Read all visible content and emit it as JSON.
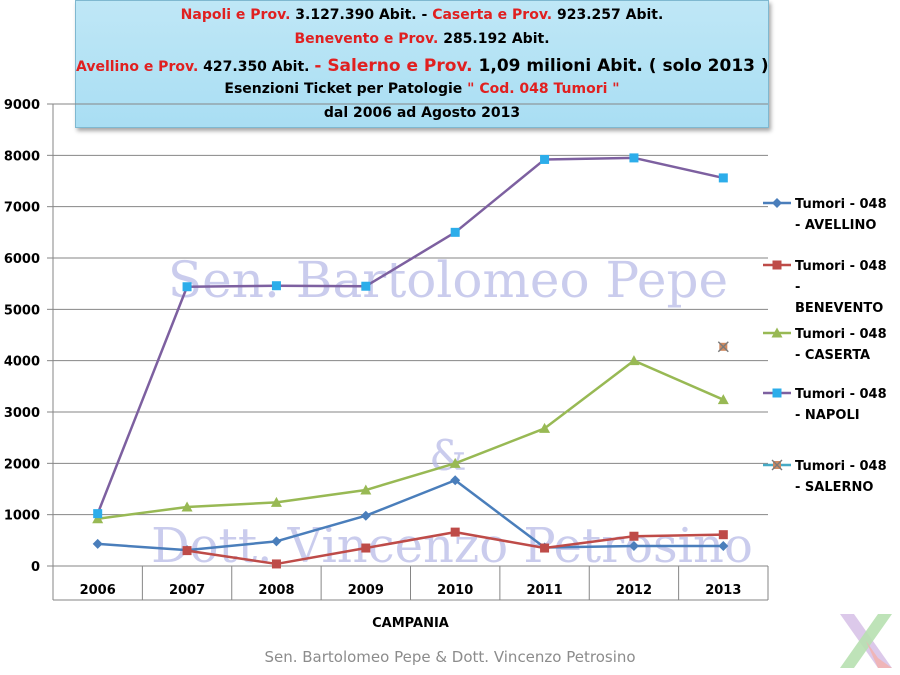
{
  "title": {
    "line1": {
      "a_red": "Napoli e Prov.",
      "a_val": " 3.127.390 Abit. - ",
      "b_red": " Caserta e Prov.",
      "b_val": " 923.257 Abit."
    },
    "line2": {
      "a_red": "Benevento e Prov.",
      "a_val": " 285.192 Abit."
    },
    "line3": {
      "a_red": "Avellino e Prov.",
      "a_val": " 427.350 Abit. ",
      "b_red": "- Salerno e Prov.",
      "b_val": " 1,09 milioni Abit. ( solo 2013 )"
    },
    "line4": {
      "a_val": "Esenzioni Ticket per Patologie ",
      "a_red": " \" Cod. 048 Tumori \""
    },
    "line5": "dal 2006 ad Agosto 2013"
  },
  "watermark": {
    "line1": "Sen. Bartolomeo Pepe",
    "amp": "&",
    "line2": "Dott. Vincenzo Petrosino"
  },
  "footer": "Sen. Bartolomeo Pepe & Dott. Vincenzo Petrosino",
  "chart_data": {
    "type": "line",
    "categories": [
      "2006",
      "2007",
      "2008",
      "2009",
      "2010",
      "2011",
      "2012",
      "2013"
    ],
    "xlabel": "CAMPANIA",
    "ylabel": "",
    "ylim": [
      0,
      9000
    ],
    "yticks": [
      0,
      1000,
      2000,
      3000,
      4000,
      5000,
      6000,
      7000,
      8000,
      9000
    ],
    "grid": true,
    "legend": "right",
    "series": [
      {
        "name": "Tumori - 048 - AVELLINO",
        "color": "#4a7ebb",
        "marker": "diamond",
        "values": [
          430,
          310,
          480,
          980,
          1670,
          360,
          390,
          390
        ]
      },
      {
        "name": "Tumori - 048 - BENEVENTO",
        "color": "#be4b48",
        "marker": "square",
        "values": [
          null,
          300,
          40,
          350,
          660,
          350,
          580,
          610
        ]
      },
      {
        "name": "Tumori - 048 - CASERTA",
        "color": "#98b954",
        "marker": "triangle",
        "values": [
          920,
          1150,
          1240,
          1480,
          2000,
          2680,
          4000,
          3240
        ]
      },
      {
        "name": "Tumori - 048 - NAPOLI",
        "color": "#7d60a0",
        "marker": "square",
        "markerColor": "#2cadea",
        "values": [
          1020,
          5440,
          5460,
          5450,
          6500,
          7920,
          7950,
          7560
        ]
      },
      {
        "name": "Tumori - 048 - SALERNO",
        "color": "#46aac5",
        "marker": "star",
        "markerColor": "#d08a60",
        "values": [
          null,
          null,
          null,
          null,
          null,
          null,
          null,
          4270
        ]
      }
    ]
  }
}
